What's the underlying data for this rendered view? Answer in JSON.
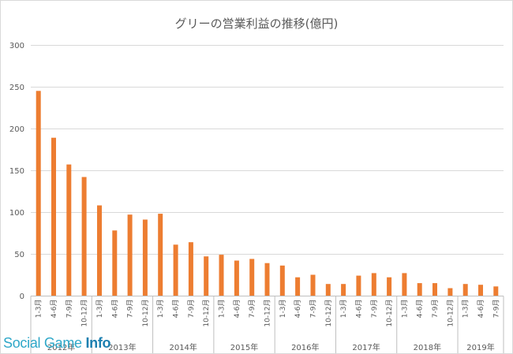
{
  "chart_data": {
    "type": "bar",
    "title": "グリーの営業利益の推移(億円)",
    "ylim": [
      0,
      300
    ],
    "yticks": [
      0,
      50,
      100,
      150,
      200,
      250,
      300
    ],
    "grid": true,
    "color": "#ed7d31",
    "categories": [
      "1-3月",
      "4-6月",
      "7-9月",
      "10-12月",
      "1-3月",
      "4-6月",
      "7-9月",
      "10-12月",
      "1-3月",
      "4-6月",
      "7-9月",
      "10-12月",
      "1-3月",
      "4-6月",
      "7-9月",
      "10-12月",
      "1-3月",
      "4-6月",
      "7-9月",
      "10-12月",
      "1-3月",
      "4-6月",
      "7-9月",
      "10-12月",
      "1-3月",
      "4-6月",
      "7-9月",
      "10-12月",
      "1-3月",
      "4-6月",
      "7-9月"
    ],
    "values": [
      245,
      189,
      157,
      142,
      108,
      78,
      97,
      91,
      98,
      61,
      64,
      47,
      49,
      42,
      44,
      39,
      36,
      22,
      25,
      14,
      14,
      24,
      27,
      22,
      27,
      15,
      15,
      9,
      14,
      13,
      11
    ],
    "groups": [
      {
        "label": "2012年",
        "count": 4
      },
      {
        "label": "2013年",
        "count": 4
      },
      {
        "label": "2014年",
        "count": 4
      },
      {
        "label": "2015年",
        "count": 4
      },
      {
        "label": "2016年",
        "count": 4
      },
      {
        "label": "2017年",
        "count": 4
      },
      {
        "label": "2018年",
        "count": 4
      },
      {
        "label": "2019年",
        "count": 3
      }
    ]
  },
  "watermark": {
    "part1": "Social Game",
    "part2": "Info"
  }
}
